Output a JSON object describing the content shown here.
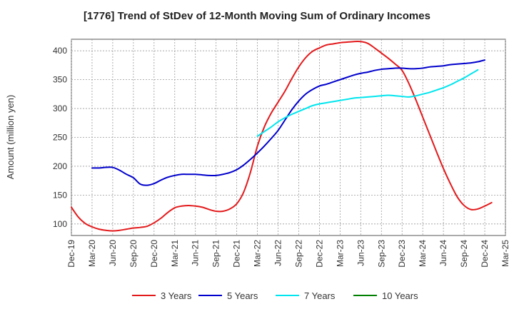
{
  "chart_data": {
    "type": "line",
    "title": "[1776]  Trend of StDev of 12-Month Moving Sum of Ordinary Incomes",
    "xlabel": "",
    "ylabel": "Amount (million yen)",
    "ylim": [
      80,
      420
    ],
    "yticks": [
      100,
      150,
      200,
      250,
      300,
      350,
      400
    ],
    "grid": true,
    "legend_position": "bottom",
    "x_tick_labels": [
      "Dec-19",
      "Mar-20",
      "Jun-20",
      "Sep-20",
      "Dec-20",
      "Mar-21",
      "Jun-21",
      "Sep-21",
      "Dec-21",
      "Mar-22",
      "Jun-22",
      "Sep-22",
      "Dec-22",
      "Mar-23",
      "Jun-23",
      "Sep-23",
      "Dec-23",
      "Mar-24",
      "Jun-24",
      "Sep-24",
      "Dec-24",
      "Mar-25"
    ],
    "x_start": "Dec-19",
    "x_step_months": 1,
    "series": [
      {
        "name": "3 Years",
        "color": "#e31a1c",
        "start_index": 0,
        "values": [
          129,
          112,
          101,
          95,
          91,
          89,
          88,
          89,
          91,
          93,
          94,
          96,
          102,
          110,
          120,
          128,
          131,
          132,
          131,
          129,
          125,
          122,
          122,
          126,
          135,
          155,
          190,
          235,
          268,
          292,
          311,
          330,
          352,
          372,
          388,
          399,
          405,
          410,
          412,
          414,
          415,
          416,
          416,
          413,
          405,
          396,
          387,
          377,
          366,
          343,
          315,
          285,
          255,
          225,
          196,
          170,
          147,
          132,
          125,
          126,
          131,
          137
        ]
      },
      {
        "name": "5 Years",
        "color": "#0000cc",
        "start_index": 3,
        "values": [
          197,
          197,
          198,
          198,
          193,
          186,
          180,
          169,
          167,
          170,
          176,
          181,
          184,
          186,
          186,
          186,
          185,
          184,
          184,
          186,
          189,
          194,
          202,
          212,
          223,
          235,
          248,
          262,
          280,
          298,
          313,
          325,
          333,
          339,
          342,
          346,
          350,
          354,
          358,
          361,
          363,
          366,
          368,
          369,
          370,
          370,
          369,
          369,
          370,
          372,
          373,
          374,
          376,
          377,
          378,
          379,
          381,
          384
        ]
      },
      {
        "name": "7 Years",
        "color": "#00e5ee",
        "start_index": 27,
        "values": [
          252,
          260,
          268,
          277,
          284,
          290,
          295,
          300,
          305,
          308,
          310,
          312,
          314,
          316,
          318,
          319,
          320,
          321,
          322,
          323,
          322,
          321,
          320,
          322,
          325,
          328,
          332,
          336,
          341,
          347,
          353,
          360,
          367
        ]
      },
      {
        "name": "10 Years",
        "color": "#008000",
        "start_index": 0,
        "values": []
      }
    ]
  }
}
